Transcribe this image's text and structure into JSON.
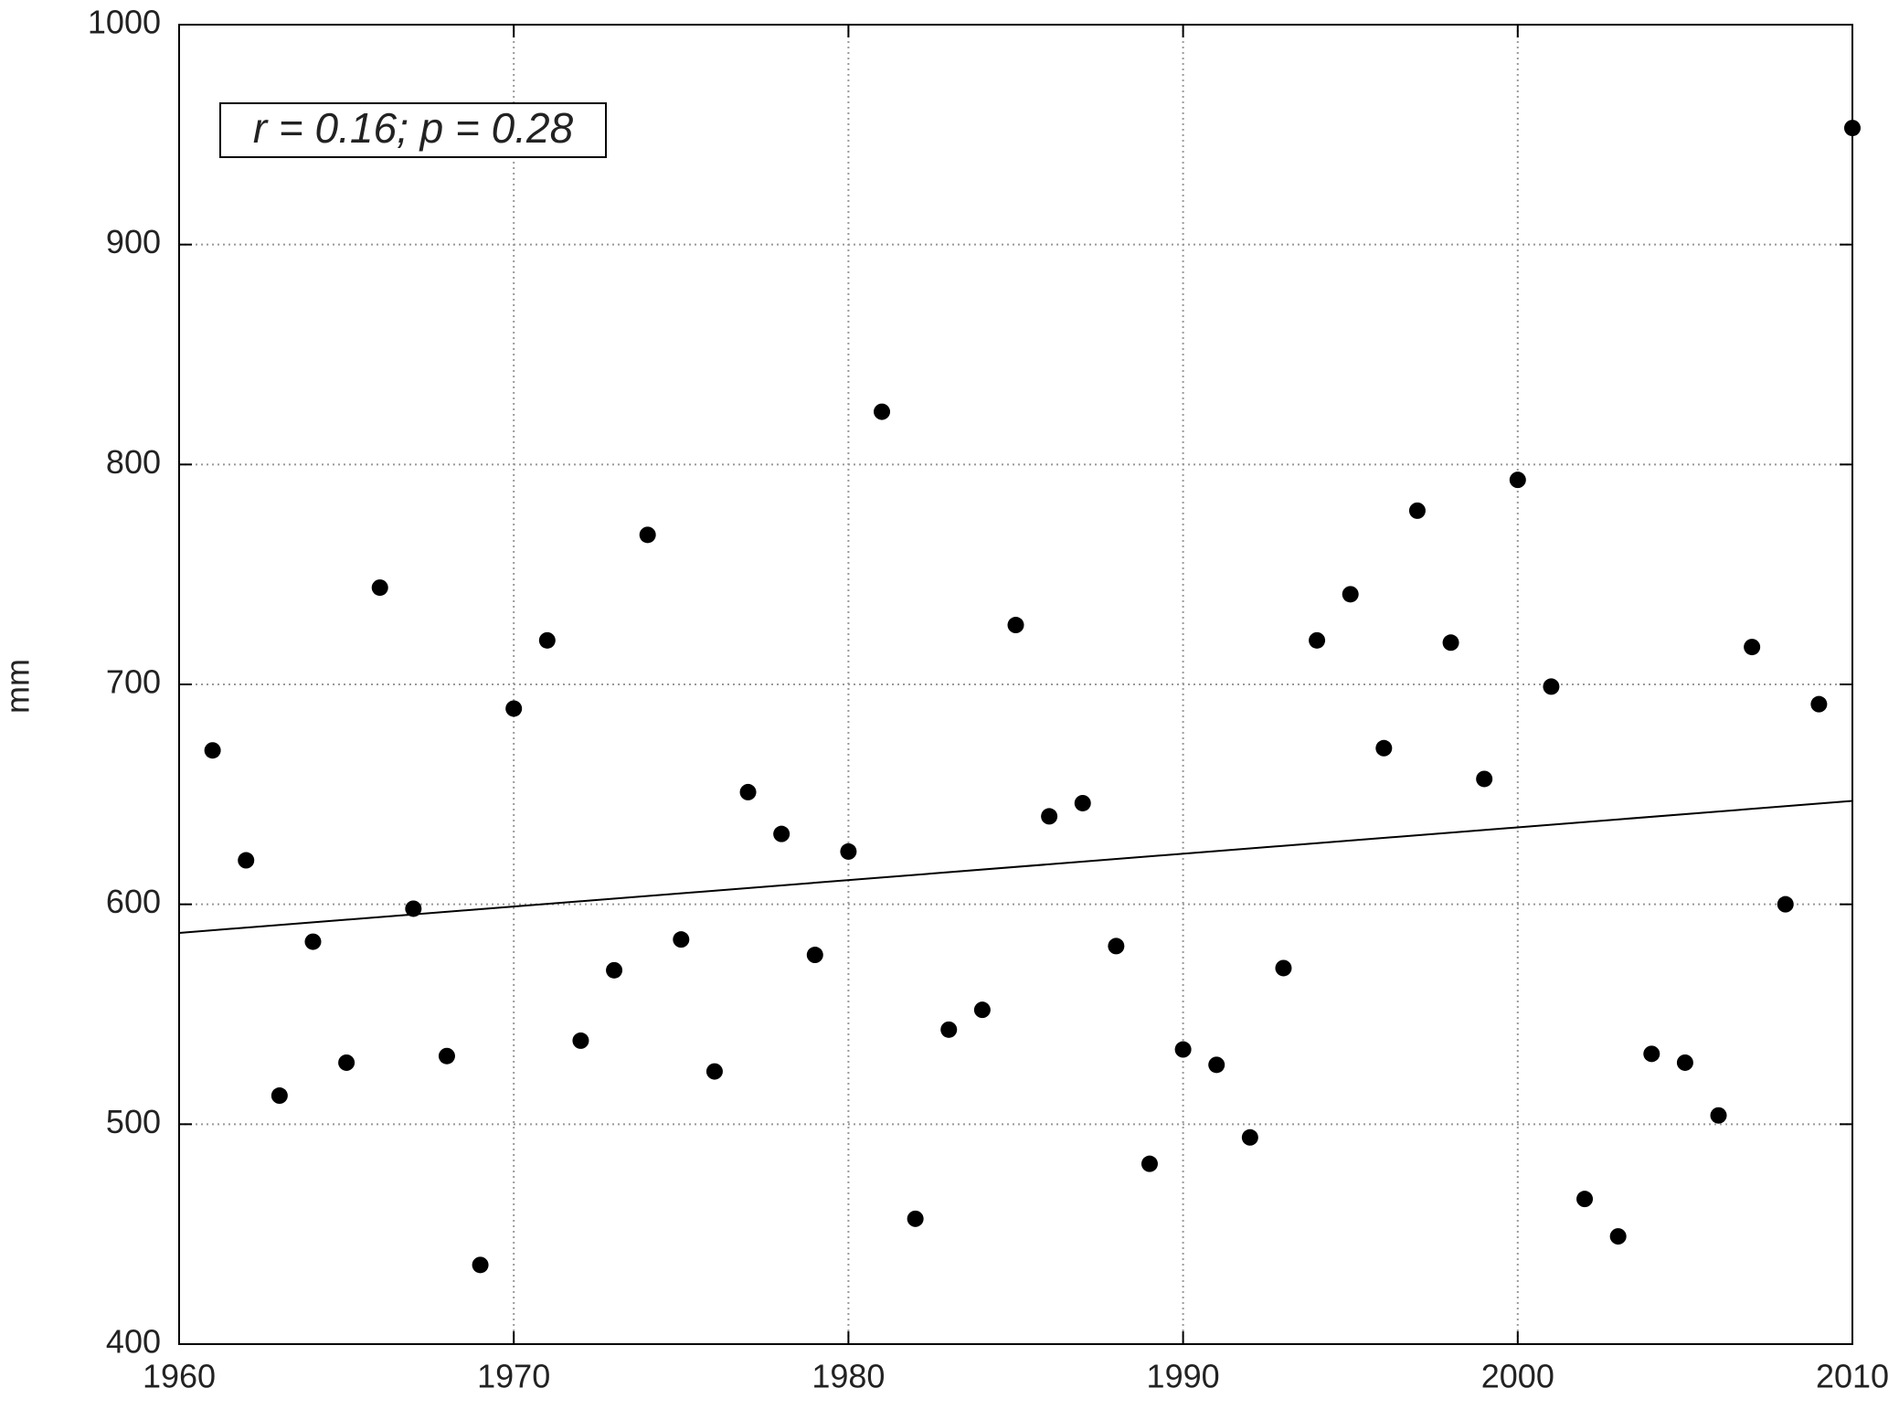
{
  "chart_data": {
    "type": "scatter",
    "annotation": "r = 0.16; p = 0.28",
    "y_label": "mm",
    "series": [
      {
        "color": "#000000",
        "x": [
          1961,
          1962,
          1963,
          1964,
          1965,
          1966,
          1967,
          1968,
          1969,
          1970,
          1971,
          1972,
          1973,
          1974,
          1975,
          1976,
          1977,
          1978,
          1979,
          1980,
          1981,
          1982,
          1983,
          1984,
          1985,
          1986,
          1987,
          1988,
          1989,
          1990,
          1991,
          1992,
          1993,
          1994,
          1995,
          1996,
          1997,
          1998,
          1999,
          2000,
          2001,
          2002,
          2003,
          2004,
          2005,
          2006,
          2007,
          2008,
          2009,
          2010
        ],
        "values": [
          670,
          620,
          513,
          583,
          528,
          744,
          598,
          531,
          436,
          689,
          720,
          538,
          570,
          768,
          584,
          524,
          651,
          632,
          577,
          624,
          824,
          457,
          543,
          552,
          727,
          640,
          646,
          581,
          482,
          534,
          527,
          494,
          571,
          720,
          741,
          671,
          779,
          719,
          657,
          793,
          699,
          466,
          449,
          532,
          528,
          504,
          717,
          600,
          691,
          953
        ]
      }
    ],
    "trend_line": {
      "x": [
        1960,
        2010
      ],
      "y": [
        587,
        647
      ]
    },
    "xlim": [
      1960,
      2010
    ],
    "xticks": [
      1960,
      1970,
      1980,
      1990,
      2000,
      2010
    ],
    "ylim": [
      400,
      1000
    ],
    "yticks": [
      400,
      500,
      600,
      700,
      800,
      900,
      1000
    ],
    "grid": true
  }
}
